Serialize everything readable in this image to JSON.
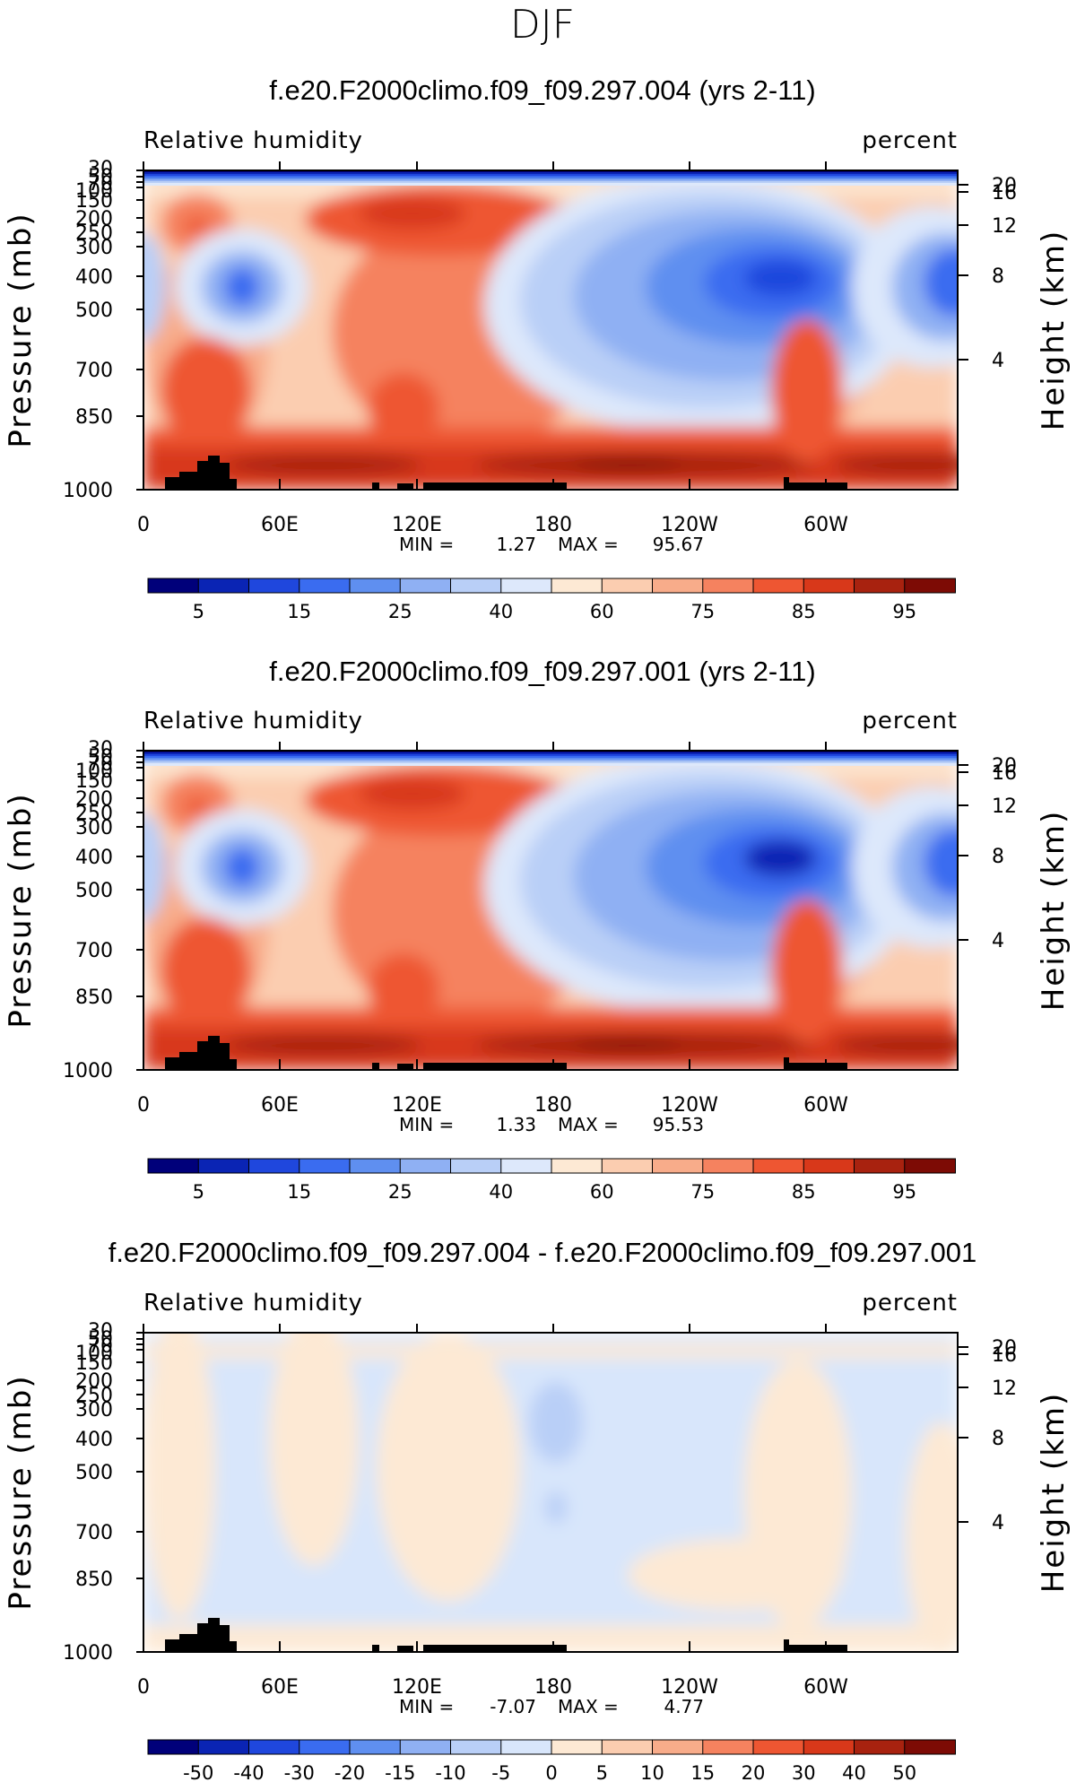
{
  "figure_title": "DJF",
  "colors": {
    "rh_levels": [
      "#00007a",
      "#0a24b4",
      "#1f47dd",
      "#3a6cf0",
      "#5f8ff0",
      "#8fb0f3",
      "#b9cff7",
      "#dde8fb",
      "#fde9d4",
      "#fbcdb0",
      "#f8ac8a",
      "#f5825f",
      "#ee5632",
      "#d8381a",
      "#a8220f",
      "#7d0b05"
    ],
    "diff_levels": [
      "#00007a",
      "#0a24b4",
      "#1f47dd",
      "#3a6cf0",
      "#5f8ff0",
      "#8fb0f3",
      "#b9cff7",
      "#d8e6fb",
      "#fde9d4",
      "#fbcdb0",
      "#f8ac8a",
      "#f5825f",
      "#ee5632",
      "#d8381a",
      "#a8220f",
      "#7d0b05"
    ]
  },
  "chart_data": [
    {
      "type": "heatmap",
      "title": "f.e20.F2000climo.f09_f09.297.004 (yrs 2-11)",
      "left_label": "Relative humidity",
      "right_label": "percent",
      "ylabel": "Pressure (mb)",
      "y2label": "Height (km)",
      "x_ticks": [
        "0",
        "60E",
        "120E",
        "180",
        "120W",
        "60W"
      ],
      "y_ticks": [
        "30",
        "50",
        "70",
        "100",
        "150",
        "200",
        "250",
        "300",
        "400",
        "500",
        "700",
        "850",
        "1000"
      ],
      "y2_ticks": [
        "20",
        "16",
        "12",
        "8",
        "4"
      ],
      "min_label": "MIN =",
      "min": "1.27",
      "max_label": "MAX =",
      "max": "95.67",
      "colorbar_labels": [
        "5",
        "15",
        "25",
        "40",
        "60",
        "75",
        "85",
        "95"
      ],
      "scale": "rh"
    },
    {
      "type": "heatmap",
      "title": "f.e20.F2000climo.f09_f09.297.001 (yrs 2-11)",
      "left_label": "Relative humidity",
      "right_label": "percent",
      "ylabel": "Pressure (mb)",
      "y2label": "Height (km)",
      "x_ticks": [
        "0",
        "60E",
        "120E",
        "180",
        "120W",
        "60W"
      ],
      "y_ticks": [
        "30",
        "50",
        "70",
        "100",
        "150",
        "200",
        "250",
        "300",
        "400",
        "500",
        "700",
        "850",
        "1000"
      ],
      "y2_ticks": [
        "20",
        "16",
        "12",
        "8",
        "4"
      ],
      "min_label": "MIN =",
      "min": "1.33",
      "max_label": "MAX =",
      "max": "95.53",
      "colorbar_labels": [
        "5",
        "15",
        "25",
        "40",
        "60",
        "75",
        "85",
        "95"
      ],
      "scale": "rh"
    },
    {
      "type": "heatmap",
      "title": "f.e20.F2000climo.f09_f09.297.004 - f.e20.F2000climo.f09_f09.297.001",
      "left_label": "Relative humidity",
      "right_label": "percent",
      "ylabel": "Pressure (mb)",
      "y2label": "Height (km)",
      "x_ticks": [
        "0",
        "60E",
        "120E",
        "180",
        "120W",
        "60W"
      ],
      "y_ticks": [
        "30",
        "50",
        "70",
        "100",
        "150",
        "200",
        "250",
        "300",
        "400",
        "500",
        "700",
        "850",
        "1000"
      ],
      "y2_ticks": [
        "20",
        "16",
        "12",
        "8",
        "4"
      ],
      "min_label": "MIN =",
      "min": "-7.07",
      "max_label": "MAX =",
      "max": "4.77",
      "colorbar_labels": [
        "-50",
        "-40",
        "-30",
        "-20",
        "-15",
        "-10",
        "-5",
        "0",
        "5",
        "10",
        "15",
        "20",
        "30",
        "40",
        "50"
      ],
      "scale": "diff"
    }
  ]
}
